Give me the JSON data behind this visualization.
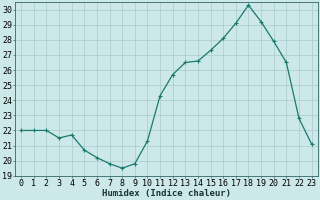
{
  "x": [
    0,
    1,
    2,
    3,
    4,
    5,
    6,
    7,
    8,
    9,
    10,
    11,
    12,
    13,
    14,
    15,
    16,
    17,
    18,
    19,
    20,
    21,
    22,
    23
  ],
  "y": [
    22,
    22,
    22,
    21.5,
    21.7,
    20.7,
    20.2,
    19.8,
    19.5,
    19.8,
    21.3,
    24.3,
    25.7,
    26.5,
    26.6,
    27.3,
    28.1,
    29.1,
    30.3,
    29.2,
    27.9,
    26.5,
    22.8,
    21.1
  ],
  "line_color": "#1a7a6e",
  "marker": "+",
  "marker_size": 3.5,
  "marker_linewidth": 0.8,
  "bg_color": "#cce8e8",
  "grid_color_major": "#aacccc",
  "grid_color_minor": "#c0dede",
  "xlabel": "Humidex (Indice chaleur)",
  "xlim": [
    -0.5,
    23.5
  ],
  "ylim": [
    19,
    30.5
  ],
  "yticks": [
    19,
    20,
    21,
    22,
    23,
    24,
    25,
    26,
    27,
    28,
    29,
    30
  ],
  "xticks": [
    0,
    1,
    2,
    3,
    4,
    5,
    6,
    7,
    8,
    9,
    10,
    11,
    12,
    13,
    14,
    15,
    16,
    17,
    18,
    19,
    20,
    21,
    22,
    23
  ],
  "xlabel_fontsize": 6.5,
  "tick_fontsize": 6.0,
  "line_width": 0.9
}
